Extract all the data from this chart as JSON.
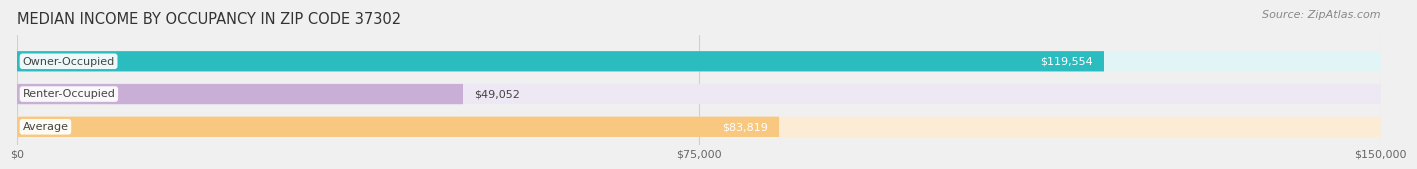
{
  "title": "MEDIAN INCOME BY OCCUPANCY IN ZIP CODE 37302",
  "source": "Source: ZipAtlas.com",
  "categories": [
    "Owner-Occupied",
    "Renter-Occupied",
    "Average"
  ],
  "values": [
    119554,
    49052,
    83819
  ],
  "labels": [
    "$119,554",
    "$49,052",
    "$83,819"
  ],
  "bar_colors": [
    "#2bbcbf",
    "#c9afd6",
    "#f8c880"
  ],
  "bar_bg_colors": [
    "#e2f5f6",
    "#ede8f4",
    "#fcecd5"
  ],
  "xlim": [
    0,
    150000
  ],
  "xticks": [
    0,
    75000,
    150000
  ],
  "xticklabels": [
    "$0",
    "$75,000",
    "$150,000"
  ],
  "title_fontsize": 10.5,
  "source_fontsize": 8,
  "tick_fontsize": 8,
  "label_fontsize": 8,
  "cat_fontsize": 8,
  "bar_height": 0.62,
  "background_color": "#f0f0f0",
  "grid_color": "#d0d0d0"
}
